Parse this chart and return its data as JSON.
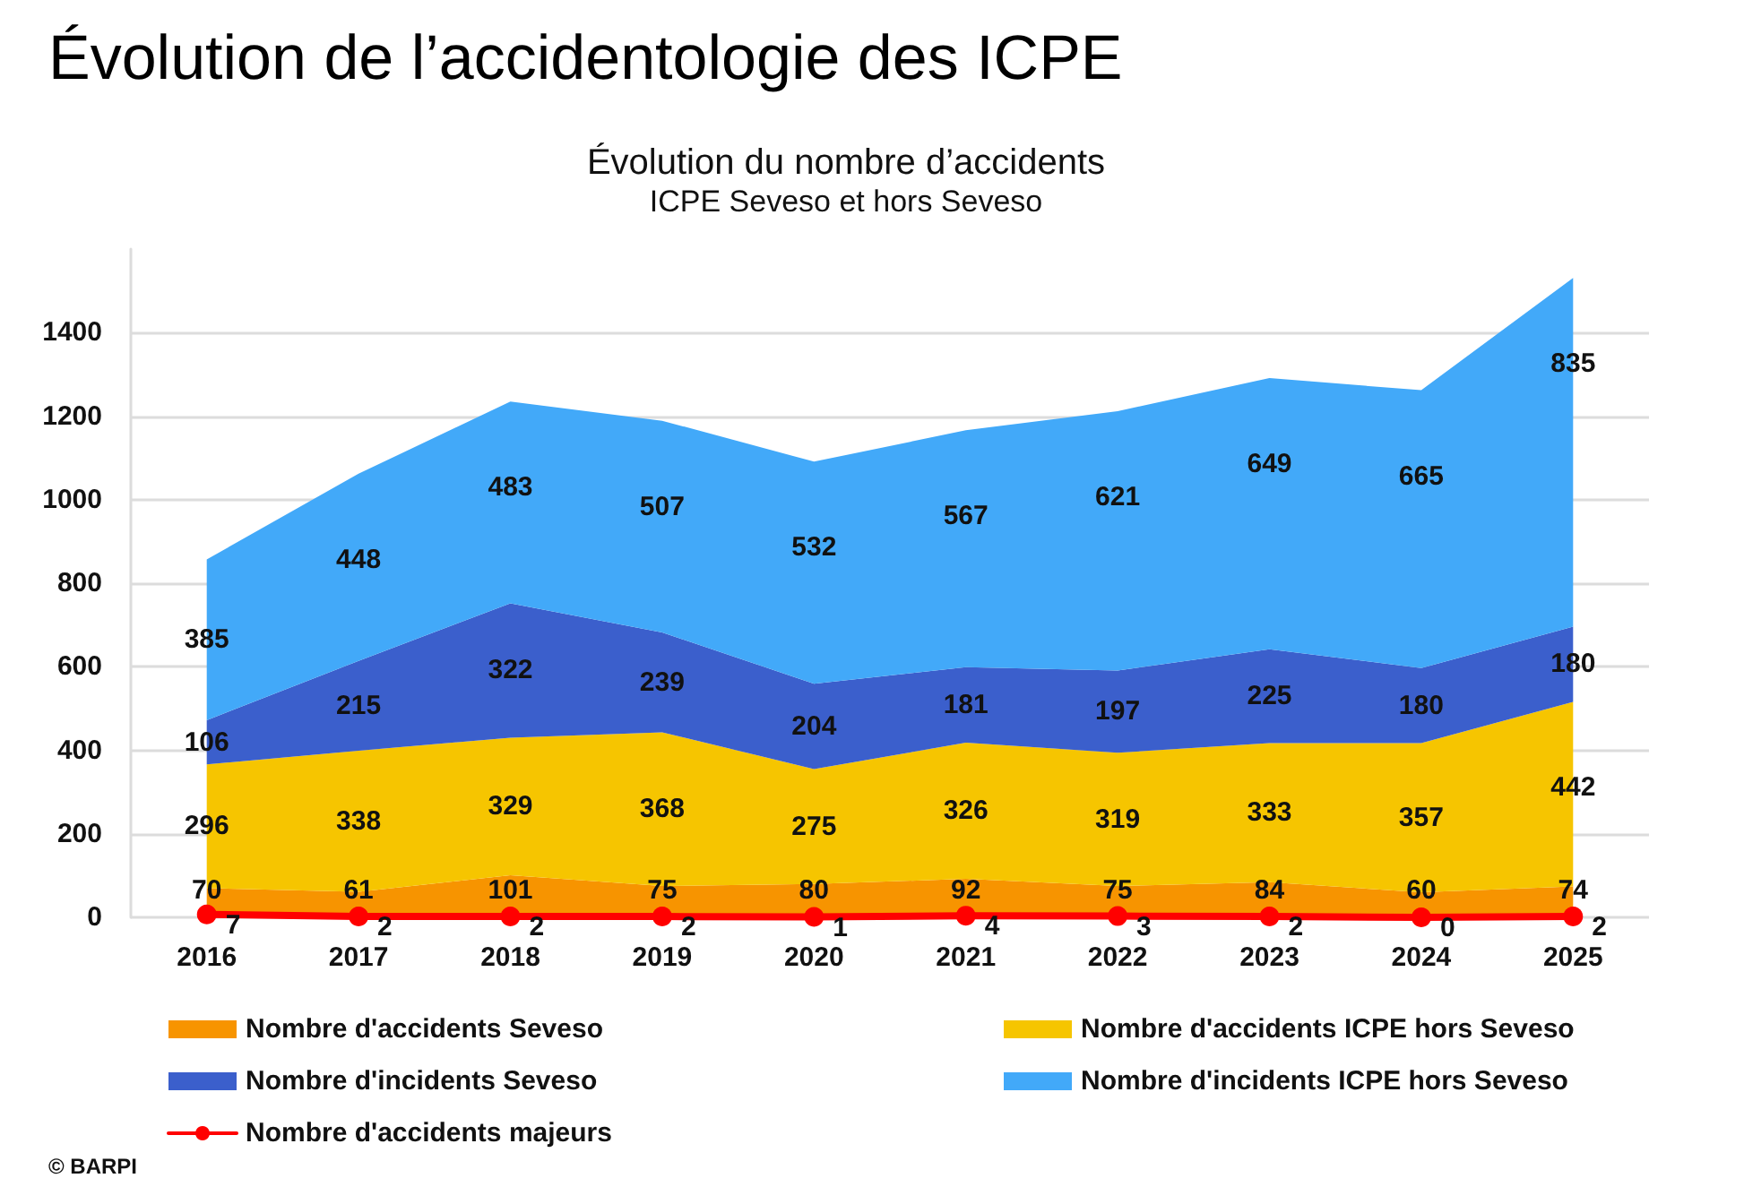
{
  "chart_data": {
    "type": "area",
    "title": "Évolution de l’accidentologie des ICPE",
    "subtitle": "Évolution du nombre d’accidents",
    "annotations": [
      "ICPE Seveso et hors Seveso",
      "© BARPI"
    ],
    "categories": [
      "2016",
      "2017",
      "2018",
      "2019",
      "2020",
      "2021",
      "2022",
      "2023",
      "2024",
      "2025"
    ],
    "series": [
      {
        "name": "Nombre d'accidents Seveso",
        "color": "#f79400",
        "values": [
          70,
          61,
          101,
          75,
          80,
          92,
          75,
          84,
          60,
          74
        ]
      },
      {
        "name": "Nombre d'accidents ICPE hors Seveso",
        "color": "#f6c500",
        "values": [
          296,
          338,
          329,
          368,
          275,
          326,
          319,
          333,
          357,
          442
        ]
      },
      {
        "name": "Nombre d'incidents Seveso",
        "color": "#3b5fcc",
        "values": [
          106,
          215,
          322,
          239,
          204,
          181,
          197,
          225,
          180,
          180
        ]
      },
      {
        "name": "Nombre d'incidents ICPE hors Seveso",
        "color": "#42a9f9",
        "values": [
          385,
          448,
          483,
          507,
          532,
          567,
          621,
          649,
          665,
          835
        ]
      },
      {
        "name": "Nombre d'accidents majeurs",
        "color": "#ff0000",
        "type": "line",
        "marker": "circle",
        "values": [
          7,
          2,
          2,
          2,
          1,
          4,
          3,
          2,
          0,
          2
        ]
      }
    ],
    "stacked": true,
    "data_labels": true,
    "ylim": [
      0,
      1600
    ],
    "yticks": [
      0,
      200,
      400,
      600,
      800,
      1000,
      1200,
      1400
    ],
    "grid": "y",
    "legend": "bottom"
  }
}
